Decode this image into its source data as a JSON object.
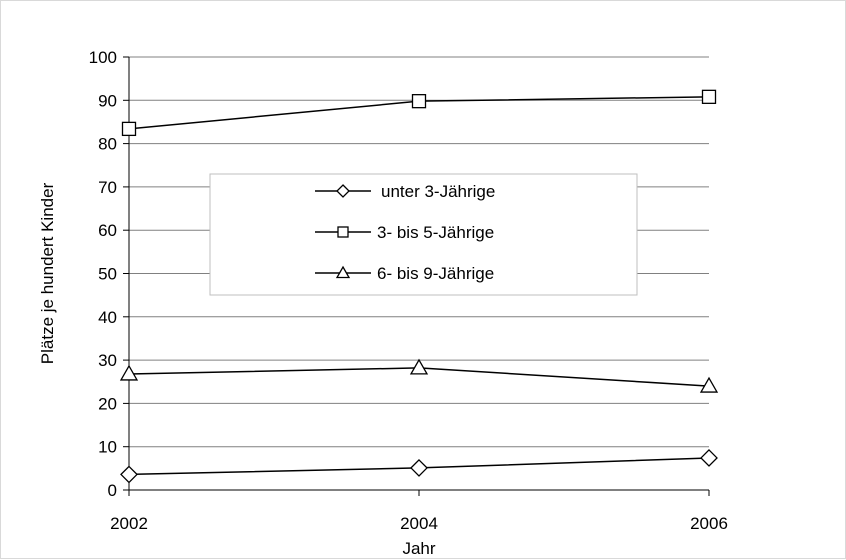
{
  "chart_data": {
    "type": "line",
    "title": "",
    "xlabel": "Jahr",
    "ylabel": "Plätze je hundert Kinder",
    "x": [
      2002,
      2004,
      2006
    ],
    "xticks": [
      "2002",
      "2004",
      "2006"
    ],
    "xlim": [
      2002,
      2006
    ],
    "ylim": [
      0,
      100
    ],
    "yticks": [
      "0",
      "10",
      "20",
      "30",
      "40",
      "50",
      "60",
      "70",
      "80",
      "90",
      "100"
    ],
    "grid": true,
    "legend_position": "center-left",
    "series": [
      {
        "name": "unter 3-Jährige",
        "marker": "diamond",
        "values": [
          3.6,
          5.1,
          7.4
        ]
      },
      {
        "name": "3- bis 5-Jährige",
        "marker": "square",
        "values": [
          83.4,
          89.8,
          90.8
        ]
      },
      {
        "name": "6- bis 9-Jährige",
        "marker": "triangle",
        "values": [
          26.8,
          28.2,
          24.0
        ]
      }
    ],
    "colors": {
      "line": "#000000",
      "grid": "#808080",
      "marker_fill": "#ffffff"
    }
  }
}
